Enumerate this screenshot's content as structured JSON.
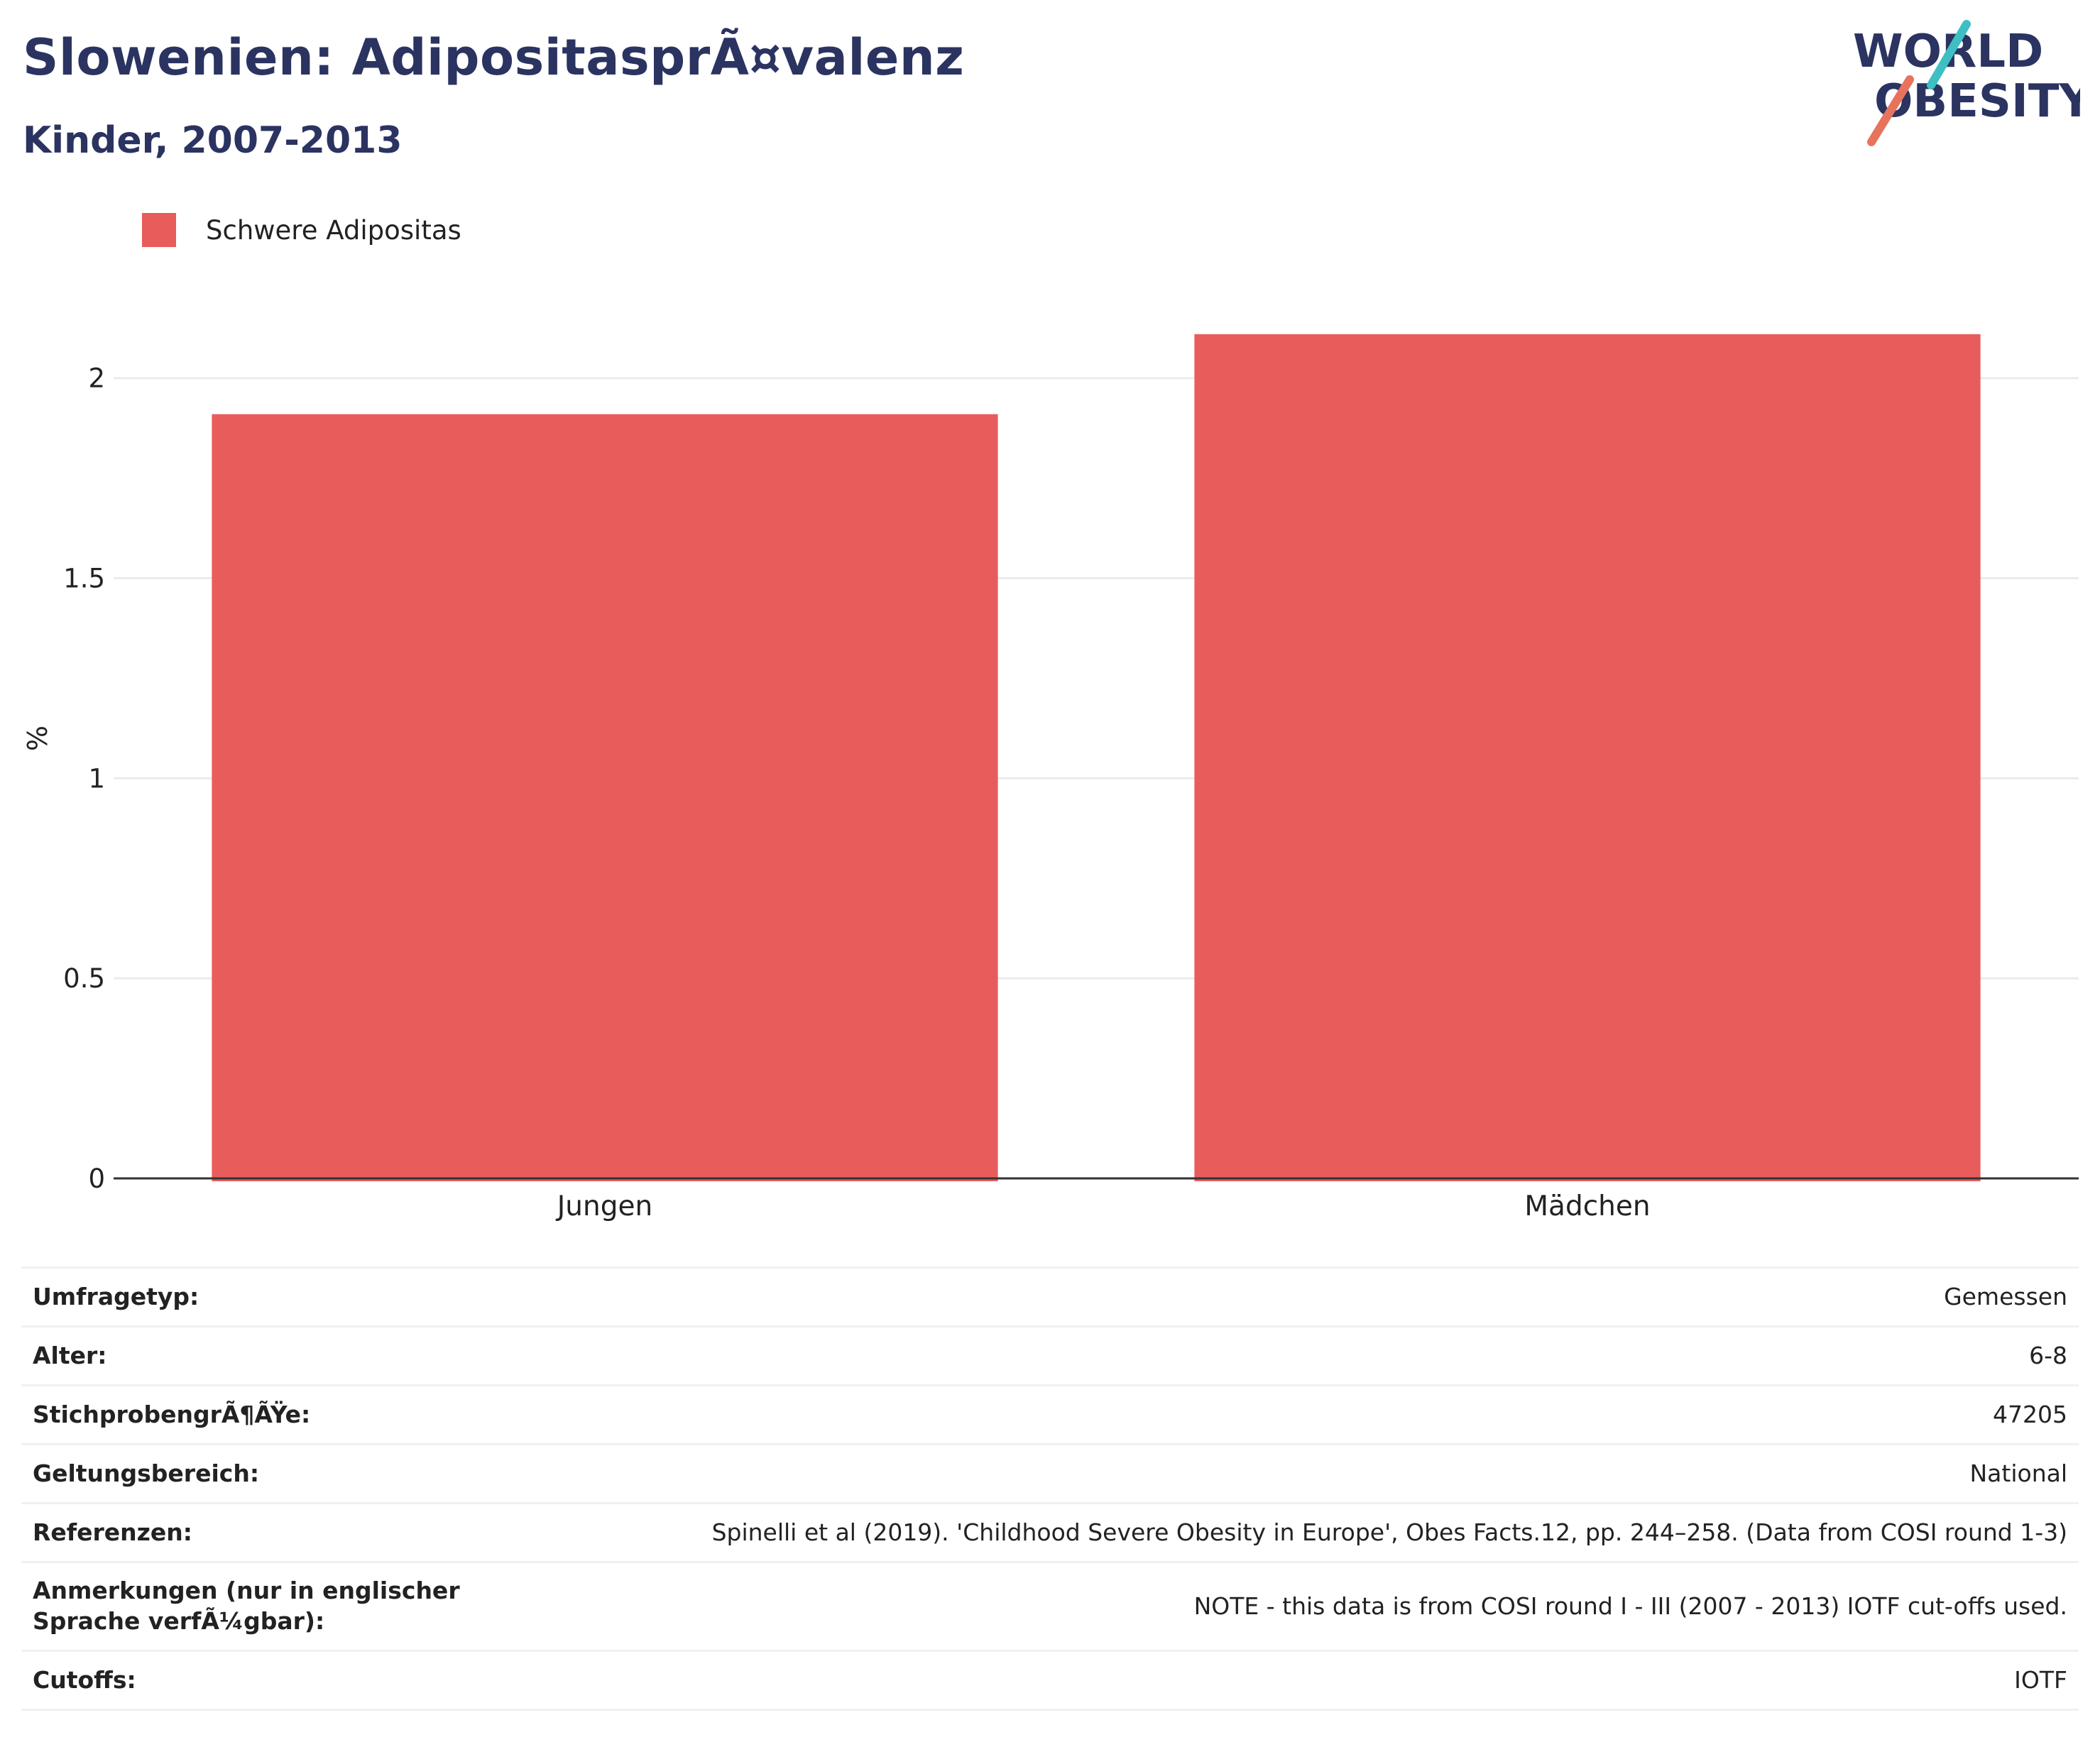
{
  "header": {
    "title": "Slowenien: AdipositasprÃ¤valenz",
    "subtitle": "Kinder, 2007-2013",
    "logo_text": "WORLD OBESITY"
  },
  "legend": {
    "items": [
      {
        "label": "Schwere Adipositas",
        "color": "#e95c5c"
      }
    ]
  },
  "chart_data": {
    "type": "bar",
    "categories": [
      "Jungen",
      "Mädchen"
    ],
    "series": [
      {
        "name": "Schwere Adipositas",
        "values": [
          1.91,
          2.11
        ],
        "color": "#e95c5c"
      }
    ],
    "ylabel": "%",
    "xlabel": "",
    "ylim": [
      0,
      2.2
    ],
    "yticks": [
      0,
      0.5,
      1,
      1.5,
      2
    ],
    "ytick_labels": [
      "0",
      "0.5",
      "1",
      "1.5",
      "2"
    ],
    "grid": true,
    "legend_position": "top-left"
  },
  "info": {
    "rows": [
      {
        "label": "Umfragetyp:",
        "value": "Gemessen"
      },
      {
        "label": "Alter:",
        "value": "6-8"
      },
      {
        "label": "StichprobengrÃ¶ÃŸe:",
        "value": "47205"
      },
      {
        "label": "Geltungsbereich:",
        "value": "National"
      },
      {
        "label": "Referenzen:",
        "value": "Spinelli et al (2019). 'Childhood Severe Obesity in Europe', Obes Facts.12, pp. 244–258. (Data from COSI round 1-3)"
      },
      {
        "label": "Anmerkungen (nur in englischer Sprache verfÃ¼gbar):",
        "value": "NOTE - this data is from COSI round I - III (2007 - 2013) IOTF cut-offs used."
      },
      {
        "label": "Cutoffs:",
        "value": "IOTF"
      }
    ]
  },
  "colors": {
    "title": "#2b3361",
    "bar": "#e95c5c",
    "logo_navy": "#2b3361",
    "logo_teal": "#3dbfc4",
    "logo_coral": "#e8735c",
    "grid": "#e8ecef"
  }
}
